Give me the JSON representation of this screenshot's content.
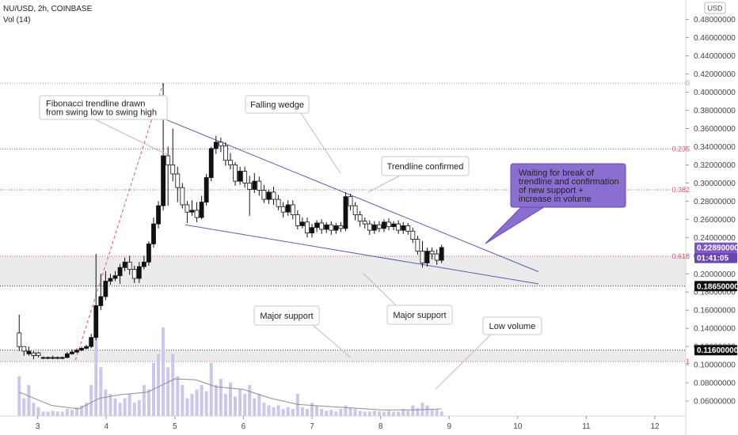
{
  "header": {
    "symbol": "NU/USD, 2h, COINBASE",
    "volume": "Vol (14)",
    "currency": "USD"
  },
  "chart_data": {
    "type": "candlestick",
    "x_ticks": [
      "3",
      "4",
      "5",
      "6",
      "7",
      "8",
      "9",
      "10",
      "11",
      "12"
    ],
    "y_ticks": [
      "0.06000000",
      "0.08000000",
      "0.10000000",
      "0.12000000",
      "0.14000000",
      "0.16000000",
      "0.18000000",
      "0.20000000",
      "0.22000000",
      "0.24000000",
      "0.26000000",
      "0.28000000",
      "0.30000000",
      "0.32000000",
      "0.34000000",
      "0.36000000",
      "0.38000000",
      "0.40000000",
      "0.42000000",
      "0.44000000",
      "0.46000000",
      "0.48000000"
    ],
    "ylim": [
      0.047,
      0.498
    ],
    "xlim": [
      2.45,
      12.45
    ],
    "price_markers": [
      {
        "value": 0.2289,
        "label": "0.22890000",
        "color": "#7e57c2",
        "text_color": "#ffffff"
      },
      {
        "value": 0.2289,
        "label": "01:41:05",
        "color": "#6a45b0",
        "text_color": "#ffffff",
        "offset": 1
      },
      {
        "value": 0.1865,
        "label": "0.18650000",
        "color": "#111111",
        "text_color": "#ffffff"
      },
      {
        "value": 0.116,
        "label": "0.11600000",
        "color": "#111111",
        "text_color": "#ffffff"
      }
    ],
    "fib_levels": [
      {
        "label": "0",
        "value": 0.41,
        "color": "#9e9e9e"
      },
      {
        "label": "0.236",
        "value": 0.3375,
        "color": "#e05a6a"
      },
      {
        "label": "0.382",
        "value": 0.2925,
        "color": "#e05a6a"
      },
      {
        "label": "0.618",
        "value": 0.2195,
        "color": "#e05a6a"
      },
      {
        "label": "1",
        "value": 0.1035,
        "color": "#e05a6a"
      }
    ],
    "support_zones": [
      {
        "from": 0.1865,
        "to": 0.2195
      },
      {
        "from": 0.1035,
        "to": 0.116
      }
    ],
    "wedge_upper": [
      [
        4.88,
        0.3695
      ],
      [
        10.3,
        0.2024
      ]
    ],
    "wedge_lower": [
      [
        5.15,
        0.254
      ],
      [
        10.3,
        0.189
      ]
    ],
    "fib_trendline": [
      [
        3.55,
        0.105
      ],
      [
        4.83,
        0.41
      ]
    ],
    "candles": [
      [
        2.73,
        0.12,
        0.155,
        0.115,
        0.135
      ],
      [
        2.8,
        0.115,
        0.12,
        0.11,
        0.12
      ],
      [
        2.87,
        0.115,
        0.12,
        0.11,
        0.112
      ],
      [
        2.94,
        0.11,
        0.115,
        0.106,
        0.113
      ],
      [
        3.01,
        0.11,
        0.114,
        0.108,
        0.113
      ],
      [
        3.08,
        0.108,
        0.109,
        0.106,
        0.107
      ],
      [
        3.15,
        0.108,
        0.109,
        0.106,
        0.107
      ],
      [
        3.22,
        0.108,
        0.11,
        0.106,
        0.107
      ],
      [
        3.29,
        0.108,
        0.109,
        0.106,
        0.107
      ],
      [
        3.36,
        0.108,
        0.109,
        0.106,
        0.107
      ],
      [
        3.43,
        0.112,
        0.114,
        0.107,
        0.108
      ],
      [
        3.5,
        0.114,
        0.117,
        0.111,
        0.112
      ],
      [
        3.57,
        0.116,
        0.118,
        0.113,
        0.114
      ],
      [
        3.64,
        0.118,
        0.12,
        0.115,
        0.116
      ],
      [
        3.71,
        0.12,
        0.122,
        0.117,
        0.118
      ],
      [
        3.78,
        0.13,
        0.134,
        0.118,
        0.12
      ],
      [
        3.85,
        0.165,
        0.222,
        0.127,
        0.13
      ],
      [
        3.92,
        0.175,
        0.2,
        0.16,
        0.165
      ],
      [
        3.99,
        0.192,
        0.203,
        0.171,
        0.175
      ],
      [
        4.06,
        0.195,
        0.2,
        0.188,
        0.192
      ],
      [
        4.13,
        0.198,
        0.203,
        0.192,
        0.195
      ],
      [
        4.2,
        0.207,
        0.211,
        0.189,
        0.198
      ],
      [
        4.27,
        0.213,
        0.218,
        0.203,
        0.207
      ],
      [
        4.34,
        0.205,
        0.22,
        0.199,
        0.213
      ],
      [
        4.41,
        0.195,
        0.209,
        0.19,
        0.205
      ],
      [
        4.48,
        0.208,
        0.213,
        0.19,
        0.195
      ],
      [
        4.55,
        0.213,
        0.22,
        0.205,
        0.208
      ],
      [
        4.62,
        0.233,
        0.236,
        0.209,
        0.213
      ],
      [
        4.69,
        0.255,
        0.262,
        0.229,
        0.233
      ],
      [
        4.76,
        0.275,
        0.28,
        0.25,
        0.255
      ],
      [
        4.83,
        0.33,
        0.41,
        0.27,
        0.275
      ],
      [
        4.9,
        0.32,
        0.34,
        0.275,
        0.33
      ],
      [
        4.97,
        0.31,
        0.36,
        0.302,
        0.32
      ],
      [
        5.04,
        0.295,
        0.318,
        0.279,
        0.31
      ],
      [
        5.11,
        0.276,
        0.3,
        0.272,
        0.295
      ],
      [
        5.18,
        0.268,
        0.28,
        0.256,
        0.276
      ],
      [
        5.25,
        0.27,
        0.281,
        0.264,
        0.268
      ],
      [
        5.32,
        0.262,
        0.279,
        0.257,
        0.27
      ],
      [
        5.39,
        0.279,
        0.286,
        0.26,
        0.262
      ],
      [
        5.46,
        0.306,
        0.31,
        0.275,
        0.279
      ],
      [
        5.53,
        0.338,
        0.34,
        0.302,
        0.306
      ],
      [
        5.6,
        0.345,
        0.352,
        0.332,
        0.338
      ],
      [
        5.67,
        0.341,
        0.35,
        0.334,
        0.345
      ],
      [
        5.74,
        0.325,
        0.345,
        0.319,
        0.341
      ],
      [
        5.81,
        0.32,
        0.333,
        0.315,
        0.325
      ],
      [
        5.88,
        0.302,
        0.323,
        0.297,
        0.32
      ],
      [
        5.95,
        0.313,
        0.318,
        0.298,
        0.302
      ],
      [
        6.02,
        0.3,
        0.318,
        0.295,
        0.313
      ],
      [
        6.09,
        0.293,
        0.308,
        0.264,
        0.3
      ],
      [
        6.16,
        0.302,
        0.311,
        0.289,
        0.293
      ],
      [
        6.23,
        0.292,
        0.307,
        0.286,
        0.302
      ],
      [
        6.3,
        0.282,
        0.298,
        0.278,
        0.292
      ],
      [
        6.37,
        0.29,
        0.293,
        0.277,
        0.282
      ],
      [
        6.44,
        0.282,
        0.296,
        0.276,
        0.29
      ],
      [
        6.51,
        0.274,
        0.287,
        0.27,
        0.282
      ],
      [
        6.58,
        0.268,
        0.279,
        0.262,
        0.274
      ],
      [
        6.65,
        0.276,
        0.281,
        0.264,
        0.268
      ],
      [
        6.72,
        0.265,
        0.281,
        0.26,
        0.276
      ],
      [
        6.79,
        0.253,
        0.27,
        0.249,
        0.265
      ],
      [
        6.86,
        0.257,
        0.262,
        0.25,
        0.253
      ],
      [
        6.93,
        0.245,
        0.262,
        0.24,
        0.257
      ],
      [
        7.0,
        0.251,
        0.255,
        0.24,
        0.245
      ],
      [
        7.07,
        0.256,
        0.259,
        0.246,
        0.251
      ],
      [
        7.14,
        0.249,
        0.26,
        0.244,
        0.256
      ],
      [
        7.21,
        0.254,
        0.257,
        0.245,
        0.249
      ],
      [
        7.28,
        0.248,
        0.258,
        0.243,
        0.254
      ],
      [
        7.35,
        0.253,
        0.256,
        0.244,
        0.248
      ],
      [
        7.42,
        0.25,
        0.257,
        0.246,
        0.253
      ],
      [
        7.49,
        0.285,
        0.29,
        0.247,
        0.25
      ],
      [
        7.56,
        0.275,
        0.288,
        0.27,
        0.285
      ],
      [
        7.63,
        0.265,
        0.279,
        0.259,
        0.275
      ],
      [
        7.7,
        0.258,
        0.269,
        0.252,
        0.265
      ],
      [
        7.77,
        0.255,
        0.262,
        0.25,
        0.258
      ],
      [
        7.84,
        0.248,
        0.259,
        0.243,
        0.255
      ],
      [
        7.91,
        0.254,
        0.258,
        0.244,
        0.248
      ],
      [
        7.98,
        0.25,
        0.258,
        0.246,
        0.254
      ],
      [
        8.05,
        0.257,
        0.26,
        0.246,
        0.25
      ],
      [
        8.12,
        0.252,
        0.261,
        0.248,
        0.257
      ],
      [
        8.19,
        0.255,
        0.258,
        0.248,
        0.252
      ],
      [
        8.26,
        0.248,
        0.259,
        0.244,
        0.255
      ],
      [
        8.33,
        0.253,
        0.257,
        0.244,
        0.248
      ],
      [
        8.4,
        0.247,
        0.256,
        0.243,
        0.253
      ],
      [
        8.47,
        0.238,
        0.251,
        0.234,
        0.247
      ],
      [
        8.54,
        0.225,
        0.242,
        0.221,
        0.238
      ],
      [
        8.61,
        0.212,
        0.236,
        0.207,
        0.225
      ],
      [
        8.68,
        0.225,
        0.229,
        0.208,
        0.212
      ],
      [
        8.75,
        0.222,
        0.229,
        0.216,
        0.225
      ],
      [
        8.82,
        0.215,
        0.227,
        0.21,
        0.222
      ],
      [
        8.89,
        0.229,
        0.232,
        0.212,
        0.215
      ]
    ],
    "volume": [
      [
        2.73,
        0.45
      ],
      [
        2.8,
        0.2
      ],
      [
        2.87,
        0.35
      ],
      [
        2.94,
        0.15
      ],
      [
        3.01,
        0.1
      ],
      [
        3.08,
        0.05
      ],
      [
        3.15,
        0.05
      ],
      [
        3.22,
        0.06
      ],
      [
        3.29,
        0.05
      ],
      [
        3.36,
        0.05
      ],
      [
        3.43,
        0.08
      ],
      [
        3.5,
        0.07
      ],
      [
        3.57,
        0.1
      ],
      [
        3.64,
        0.12
      ],
      [
        3.71,
        0.15
      ],
      [
        3.78,
        0.35
      ],
      [
        3.85,
        0.9
      ],
      [
        3.92,
        0.55
      ],
      [
        3.99,
        0.3
      ],
      [
        4.06,
        0.25
      ],
      [
        4.13,
        0.2
      ],
      [
        4.2,
        0.15
      ],
      [
        4.27,
        0.2
      ],
      [
        4.34,
        0.25
      ],
      [
        4.41,
        0.15
      ],
      [
        4.48,
        0.18
      ],
      [
        4.55,
        0.35
      ],
      [
        4.62,
        0.3
      ],
      [
        4.69,
        0.6
      ],
      [
        4.76,
        0.7
      ],
      [
        4.83,
        1.0
      ],
      [
        4.9,
        0.55
      ],
      [
        4.97,
        0.7
      ],
      [
        5.04,
        0.45
      ],
      [
        5.11,
        0.35
      ],
      [
        5.18,
        0.2
      ],
      [
        5.25,
        0.25
      ],
      [
        5.32,
        0.3
      ],
      [
        5.39,
        0.35
      ],
      [
        5.46,
        0.28
      ],
      [
        5.53,
        0.6
      ],
      [
        5.6,
        0.35
      ],
      [
        5.67,
        0.42
      ],
      [
        5.74,
        0.25
      ],
      [
        5.81,
        0.38
      ],
      [
        5.88,
        0.22
      ],
      [
        5.95,
        0.3
      ],
      [
        6.02,
        0.25
      ],
      [
        6.09,
        0.35
      ],
      [
        6.16,
        0.2
      ],
      [
        6.23,
        0.25
      ],
      [
        6.3,
        0.15
      ],
      [
        6.37,
        0.12
      ],
      [
        6.44,
        0.1
      ],
      [
        6.51,
        0.12
      ],
      [
        6.58,
        0.08
      ],
      [
        6.65,
        0.1
      ],
      [
        6.72,
        0.08
      ],
      [
        6.79,
        0.25
      ],
      [
        6.86,
        0.1
      ],
      [
        6.93,
        0.08
      ],
      [
        7.0,
        0.15
      ],
      [
        7.07,
        0.12
      ],
      [
        7.14,
        0.08
      ],
      [
        7.21,
        0.06
      ],
      [
        7.28,
        0.07
      ],
      [
        7.35,
        0.05
      ],
      [
        7.42,
        0.08
      ],
      [
        7.49,
        0.12
      ],
      [
        7.56,
        0.09
      ],
      [
        7.63,
        0.08
      ],
      [
        7.7,
        0.06
      ],
      [
        7.77,
        0.05
      ],
      [
        7.84,
        0.05
      ],
      [
        7.91,
        0.06
      ],
      [
        7.98,
        0.05
      ],
      [
        8.05,
        0.05
      ],
      [
        8.12,
        0.06
      ],
      [
        8.19,
        0.05
      ],
      [
        8.26,
        0.05
      ],
      [
        8.33,
        0.08
      ],
      [
        8.4,
        0.06
      ],
      [
        8.47,
        0.12
      ],
      [
        8.54,
        0.09
      ],
      [
        8.61,
        0.15
      ],
      [
        8.68,
        0.12
      ],
      [
        8.75,
        0.08
      ],
      [
        8.82,
        0.07
      ],
      [
        8.89,
        0.05
      ]
    ],
    "volume_ma": [
      [
        2.73,
        0.27
      ],
      [
        3.2,
        0.12
      ],
      [
        3.6,
        0.08
      ],
      [
        3.9,
        0.2
      ],
      [
        4.2,
        0.24
      ],
      [
        4.6,
        0.27
      ],
      [
        5.0,
        0.42
      ],
      [
        5.3,
        0.41
      ],
      [
        5.6,
        0.33
      ],
      [
        6.0,
        0.3
      ],
      [
        6.4,
        0.2
      ],
      [
        6.8,
        0.13
      ],
      [
        7.2,
        0.11
      ],
      [
        7.6,
        0.09
      ],
      [
        8.0,
        0.07
      ],
      [
        8.5,
        0.07
      ],
      [
        8.89,
        0.08
      ]
    ]
  },
  "annotations": [
    {
      "id": "fibonacci",
      "lines": [
        "Fibonacci trendline drawn",
        "from swing low to swing high"
      ],
      "style": "callout"
    },
    {
      "id": "falling-wedge",
      "lines": [
        "Falling wedge"
      ],
      "style": "callout"
    },
    {
      "id": "trendline-confirmed",
      "lines": [
        "Trendline confirmed"
      ],
      "style": "callout"
    },
    {
      "id": "waiting",
      "lines": [
        "Waiting for break of",
        "trendline and confirmation",
        "of new support +",
        "increase in volume"
      ],
      "style": "highlight"
    },
    {
      "id": "major-support-left",
      "lines": [
        "Major support"
      ],
      "style": "callout"
    },
    {
      "id": "major-support-right",
      "lines": [
        "Major support"
      ],
      "style": "callout"
    },
    {
      "id": "low-volume",
      "lines": [
        "Low volume"
      ],
      "style": "callout"
    }
  ],
  "colors": {
    "up": "#ffffff",
    "down": "#111111",
    "wick": "#111111",
    "wedge": "#5c5ab8",
    "highlight_fill": "#8a6fd0",
    "volume": "#c9c7ea",
    "volume_ma": "#8e8e8e"
  }
}
